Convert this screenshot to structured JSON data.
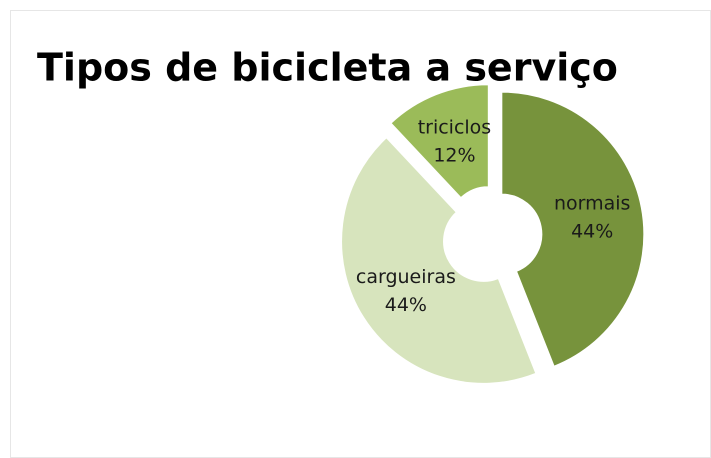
{
  "chart_data": {
    "type": "donut",
    "title": "Tipos de bicicleta a serviço",
    "categories": [
      "normais",
      "cargueiras",
      "triciclos"
    ],
    "values": [
      44,
      44,
      12
    ],
    "value_labels": [
      "44%",
      "44%",
      "12%"
    ],
    "colors": [
      "#77933c",
      "#d7e4bd",
      "#9bbb59"
    ]
  }
}
